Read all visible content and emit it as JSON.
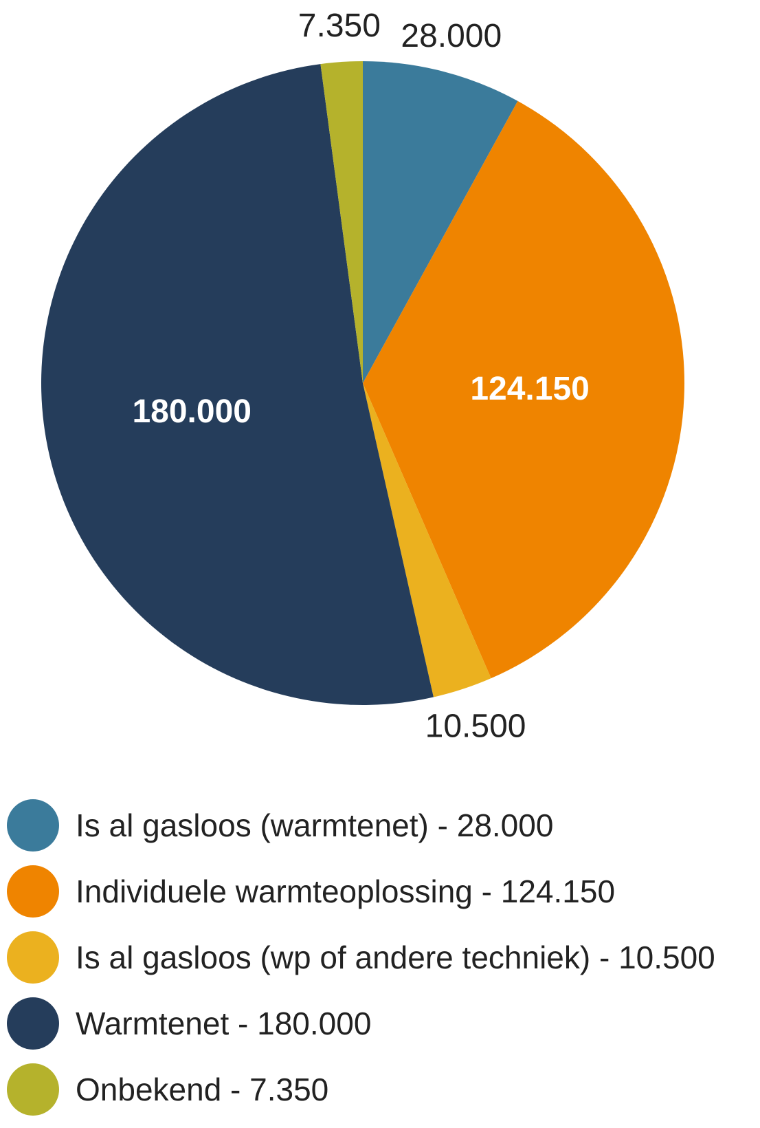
{
  "chart_data": {
    "type": "pie",
    "title": "",
    "slices": [
      {
        "label": "Is al gasloos (warmtenet)",
        "value": 28000,
        "display_value": "28.000",
        "legend_label": "Is al gasloos (warmtenet) - 28.000",
        "color": "#3b7b9b",
        "value_label_color": "#222222"
      },
      {
        "label": "Individuele warmteoplossing",
        "value": 124150,
        "display_value": "124.150",
        "legend_label": "Individuele warmteoplossing - 124.150",
        "color": "#ef8400",
        "value_label_color": "#ffffff"
      },
      {
        "label": "Is al gasloos (wp of andere techniek)",
        "value": 10500,
        "display_value": "10.500",
        "legend_label": "Is al gasloos (wp of andere techniek) - 10.500",
        "color": "#ebb11f",
        "value_label_color": "#222222"
      },
      {
        "label": "Warmtenet",
        "value": 180000,
        "display_value": "180.000",
        "legend_label": "Warmtenet - 180.000",
        "color": "#253d5b",
        "value_label_color": "#ffffff"
      },
      {
        "label": "Onbekend",
        "value": 7350,
        "display_value": "7.350",
        "legend_label": "Onbekend - 7.350",
        "color": "#b5b22c",
        "value_label_color": "#222222"
      }
    ],
    "legend_position": "bottom-left"
  }
}
